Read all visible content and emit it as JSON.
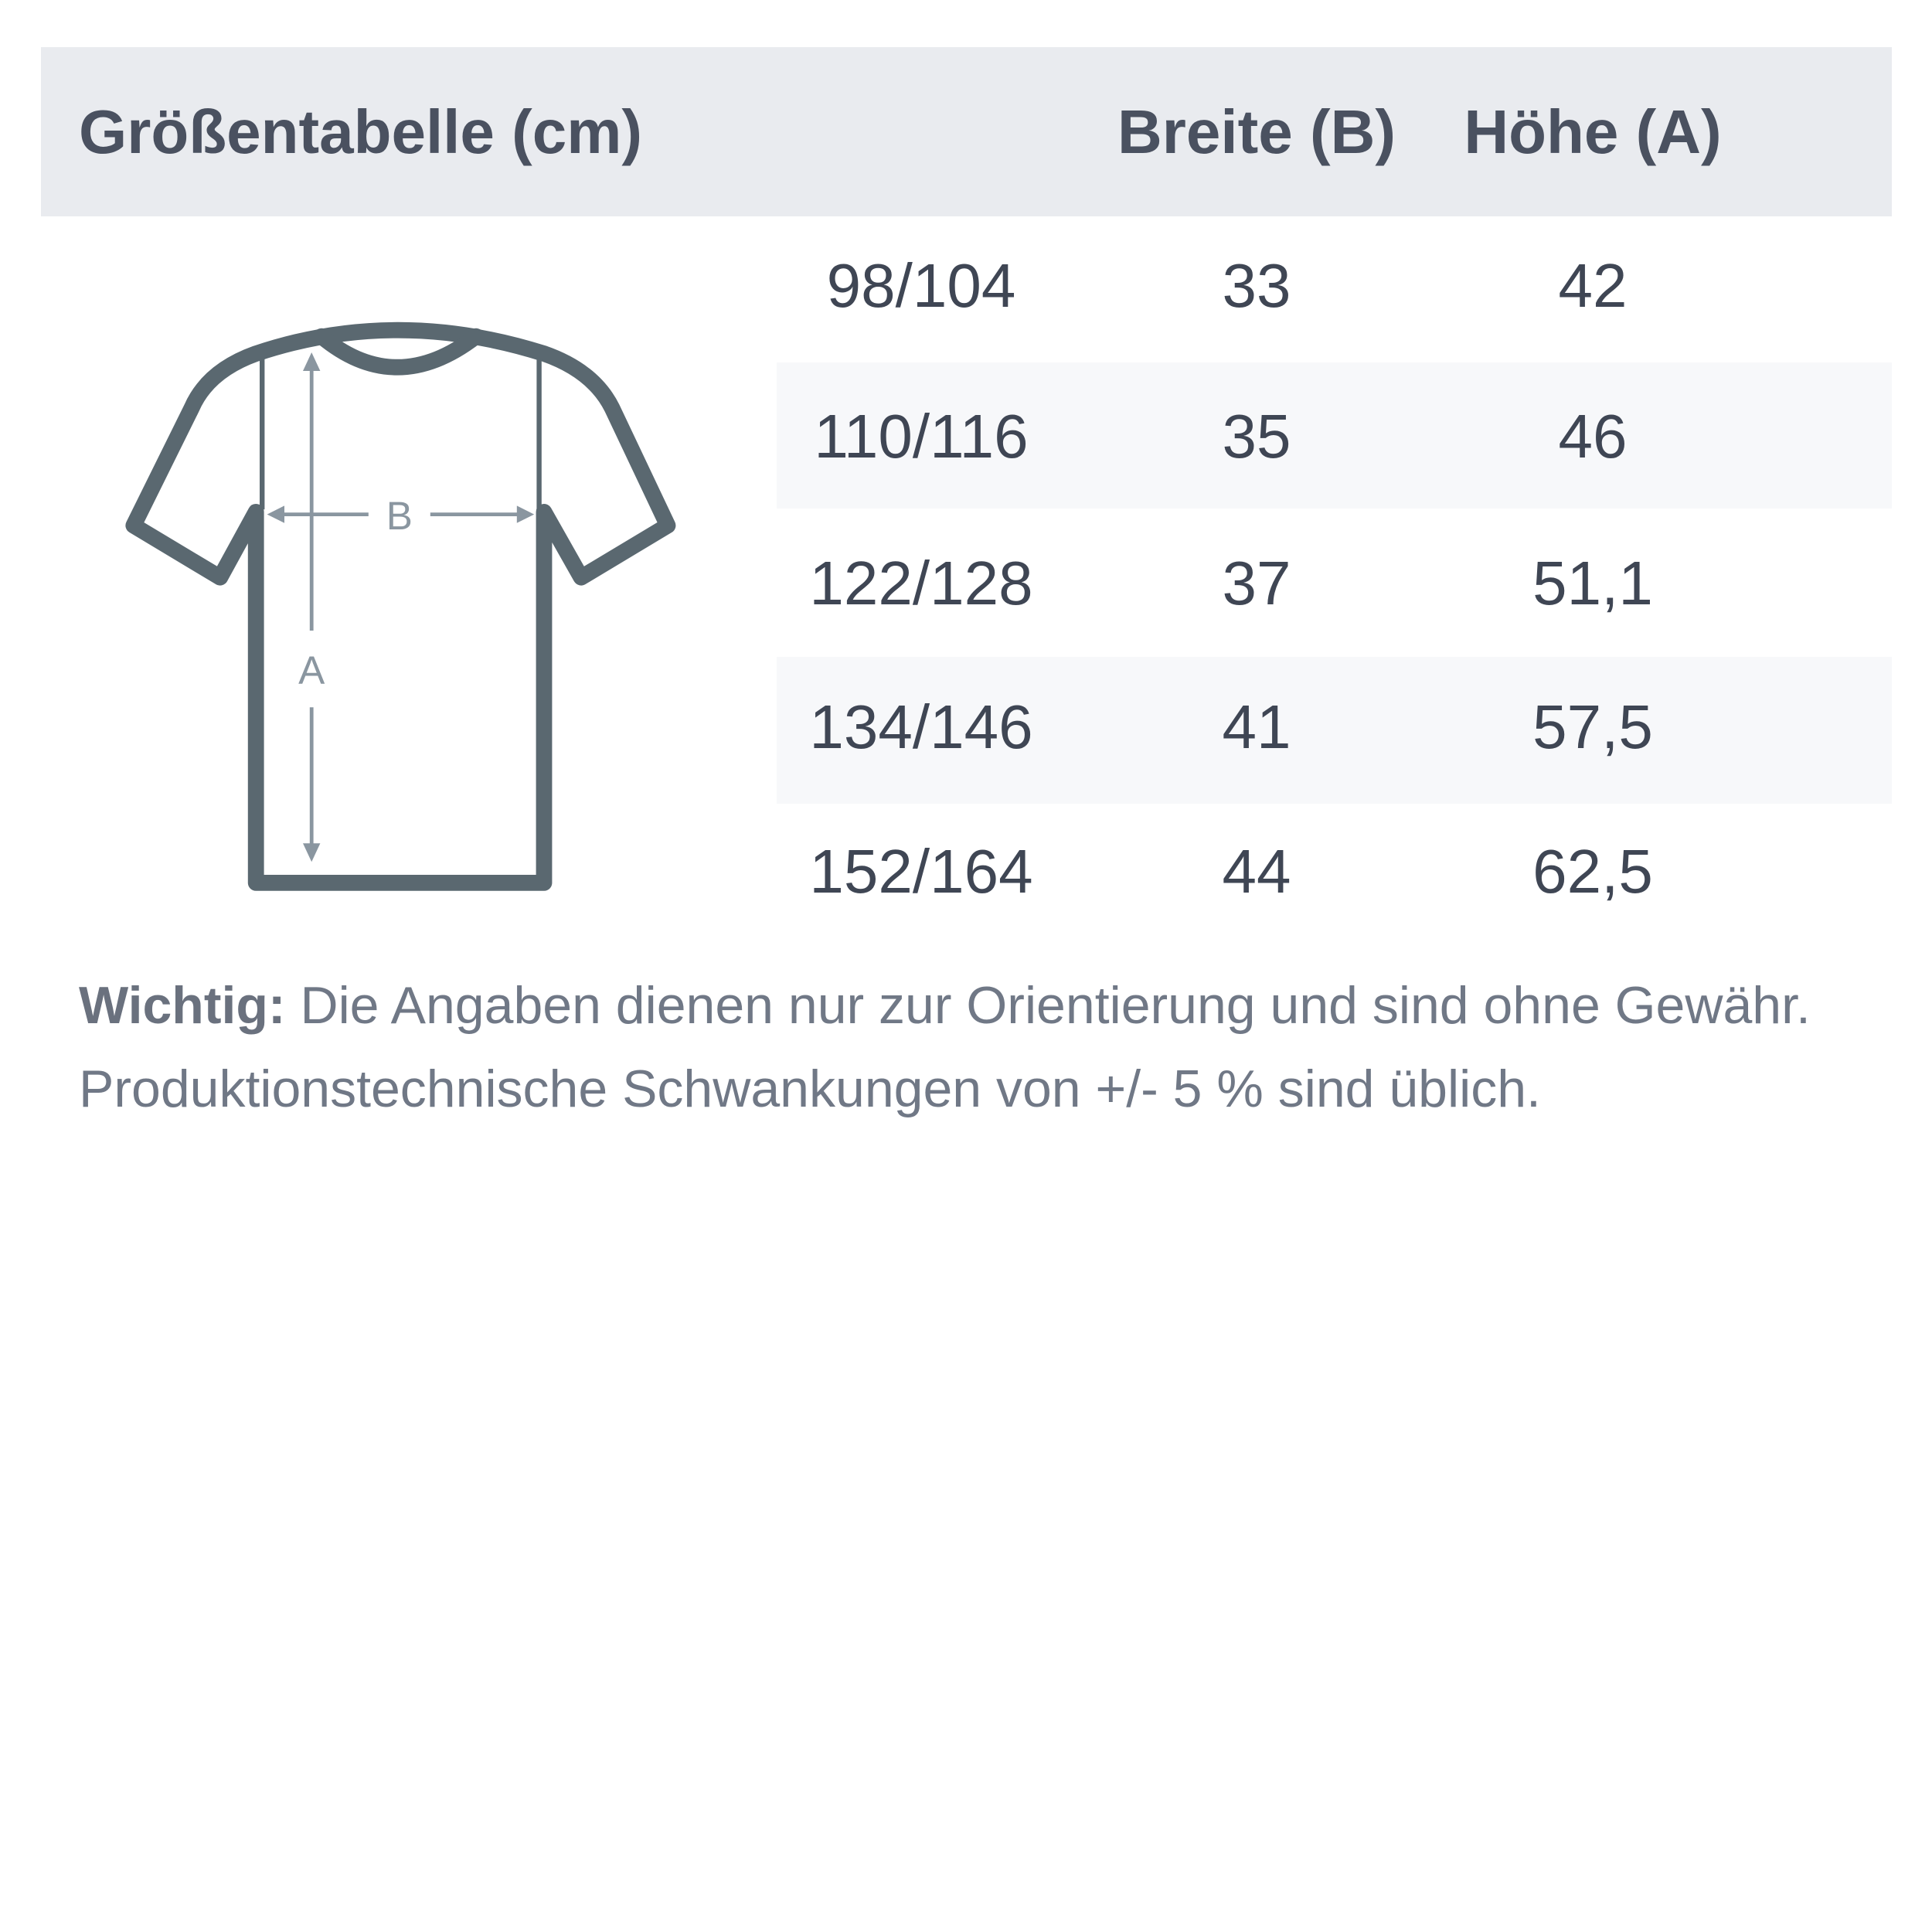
{
  "header": {
    "title": "Größentabelle (cm)",
    "col_width": "Breite (B)",
    "col_height": "Höhe (A)"
  },
  "rows": [
    {
      "size": "98/104",
      "width": "33",
      "height": "42"
    },
    {
      "size": "110/116",
      "width": "35",
      "height": "46"
    },
    {
      "size": "122/128",
      "width": "37",
      "height": "51,1"
    },
    {
      "size": "134/146",
      "width": "41",
      "height": "57,5"
    },
    {
      "size": "152/164",
      "width": "44",
      "height": "62,5"
    }
  ],
  "diagram": {
    "label_b": "B",
    "label_a": "A"
  },
  "note": {
    "bold": "Wichtig:",
    "line1": " Die Angaben dienen nur zur Orientierung und sind ohne Gewähr.",
    "line2": "Produktionstechnische Schwankungen von +/- 5 % sind üblich."
  },
  "colors": {
    "header_bg": "#e9ebef",
    "text": "#4a5160",
    "shirt": "#5a6870",
    "stripe": "#f7f8fa"
  }
}
